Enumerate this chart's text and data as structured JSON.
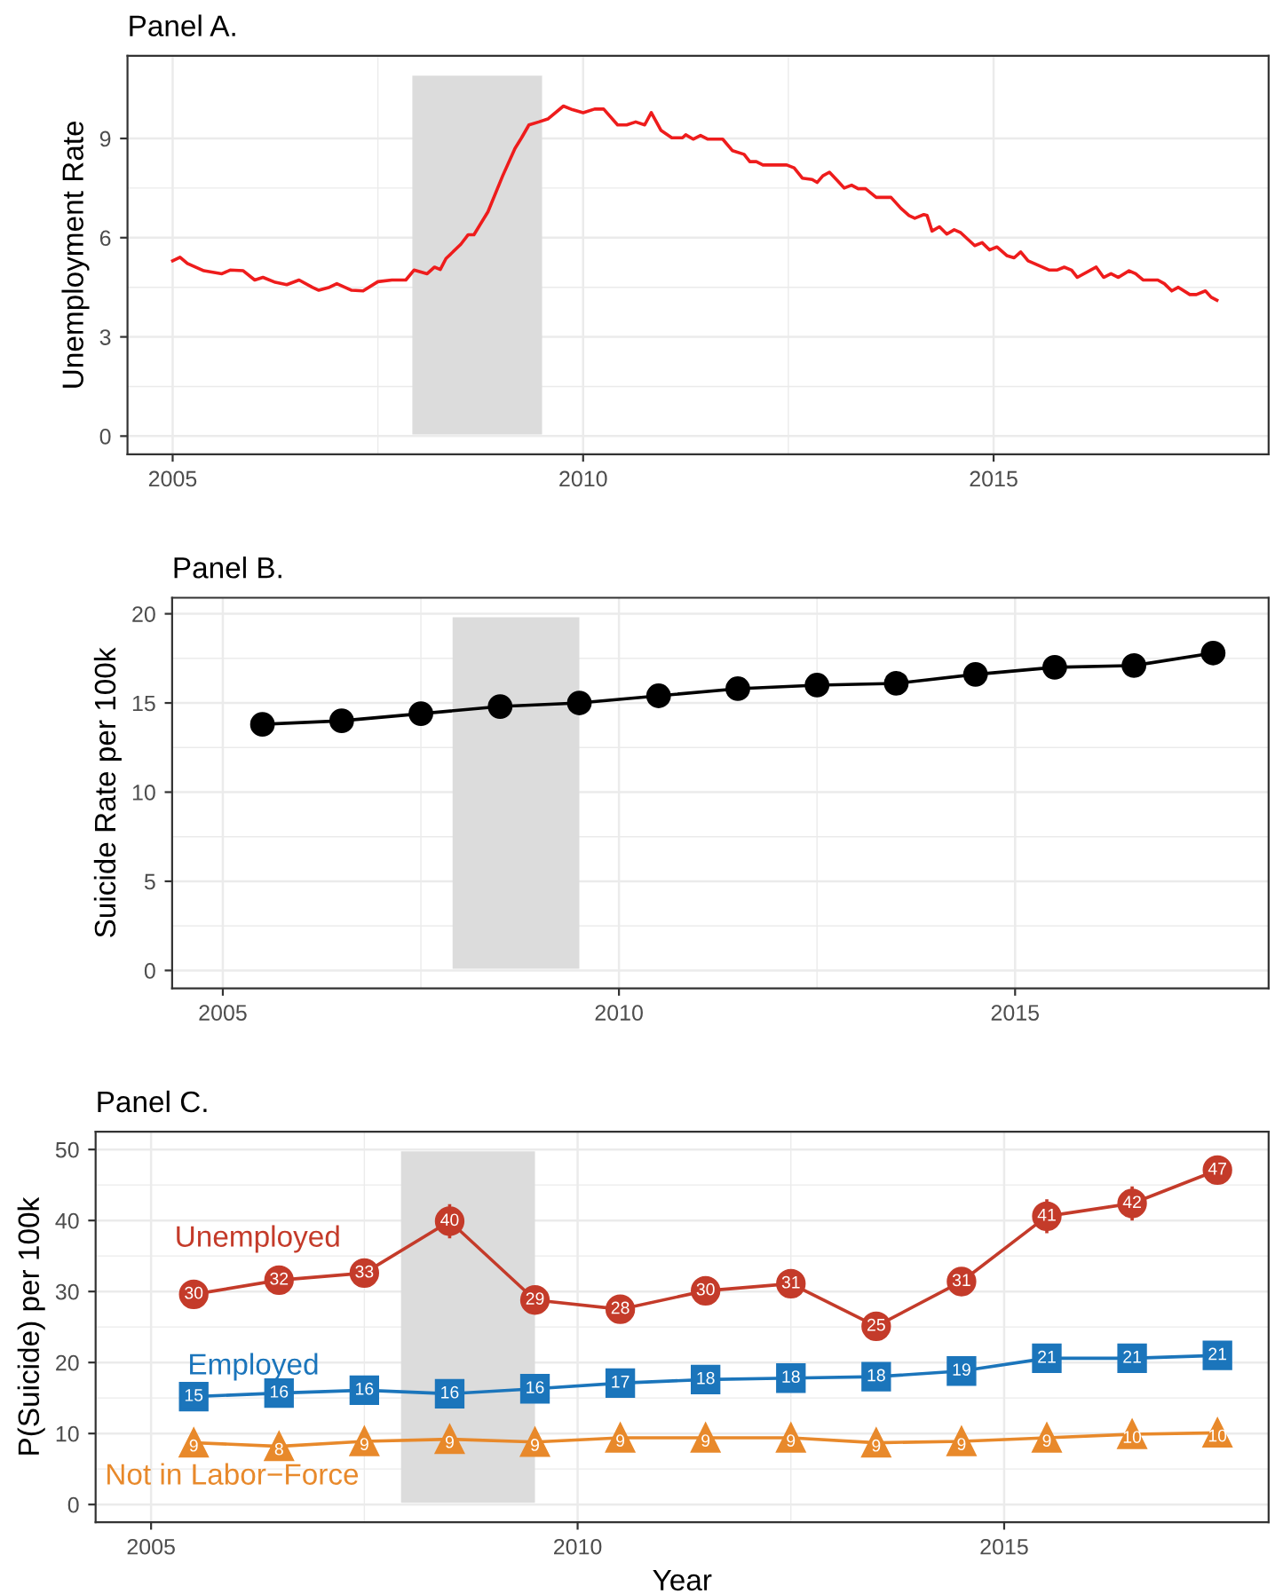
{
  "chart_data": [
    {
      "type": "line",
      "title": "Panel A.",
      "ylabel": "Unemployment Rate",
      "xlim": [
        2004.45,
        2018.35
      ],
      "ylim": [
        -0.55,
        11.5
      ],
      "xticks": [
        2005,
        2010,
        2015
      ],
      "yticks": [
        0,
        3,
        6,
        9
      ],
      "grid": true,
      "legend": false,
      "marker": "none",
      "line_style": "solid",
      "bands": [
        {
          "axis": "x",
          "from": 2007.92,
          "to": 2009.5,
          "color": "#dcdcdc"
        }
      ],
      "series": [
        {
          "color": "#ee1c1c",
          "x": [
            2005.0,
            2005.09,
            2005.18,
            2005.38,
            2005.6,
            2005.7,
            2005.86,
            2006.0,
            2006.1,
            2006.25,
            2006.39,
            2006.54,
            2006.7,
            2006.78,
            2006.91,
            2007.0,
            2007.18,
            2007.32,
            2007.5,
            2007.67,
            2007.84,
            2007.94,
            2008.1,
            2008.19,
            2008.26,
            2008.33,
            2008.51,
            2008.6,
            2008.67,
            2008.84,
            2009.02,
            2009.17,
            2009.25,
            2009.34,
            2009.46,
            2009.57,
            2009.76,
            2009.87,
            2010.0,
            2010.14,
            2010.25,
            2010.42,
            2010.53,
            2010.64,
            2010.75,
            2010.83,
            2010.95,
            2011.08,
            2011.21,
            2011.25,
            2011.34,
            2011.43,
            2011.52,
            2011.7,
            2011.82,
            2011.96,
            2012.03,
            2012.11,
            2012.19,
            2012.48,
            2012.57,
            2012.67,
            2012.79,
            2012.85,
            2012.92,
            2013.0,
            2013.1,
            2013.18,
            2013.27,
            2013.35,
            2013.44,
            2013.57,
            2013.75,
            2013.87,
            2013.97,
            2014.04,
            2014.15,
            2014.19,
            2014.25,
            2014.34,
            2014.43,
            2014.52,
            2014.6,
            2014.77,
            2014.86,
            2014.95,
            2015.04,
            2015.16,
            2015.25,
            2015.33,
            2015.42,
            2015.68,
            2015.77,
            2015.86,
            2015.95,
            2016.02,
            2016.25,
            2016.34,
            2016.43,
            2016.52,
            2016.65,
            2016.73,
            2016.82,
            2017.0,
            2017.08,
            2017.17,
            2017.25,
            2017.39,
            2017.47,
            2017.58,
            2017.65,
            2017.72
          ],
          "values": [
            5.3,
            5.41,
            5.22,
            5.0,
            4.91,
            5.02,
            5.0,
            4.72,
            4.8,
            4.65,
            4.58,
            4.72,
            4.5,
            4.41,
            4.5,
            4.61,
            4.41,
            4.39,
            4.67,
            4.72,
            4.72,
            5.02,
            4.91,
            5.11,
            5.04,
            5.37,
            5.8,
            6.09,
            6.09,
            6.78,
            7.87,
            8.7,
            9.02,
            9.41,
            9.5,
            9.59,
            9.98,
            9.87,
            9.78,
            9.89,
            9.89,
            9.41,
            9.41,
            9.5,
            9.41,
            9.78,
            9.24,
            9.02,
            9.02,
            9.11,
            8.98,
            9.09,
            8.98,
            8.98,
            8.63,
            8.52,
            8.3,
            8.3,
            8.2,
            8.2,
            8.11,
            7.8,
            7.76,
            7.67,
            7.87,
            7.98,
            7.72,
            7.5,
            7.59,
            7.48,
            7.48,
            7.22,
            7.22,
            6.89,
            6.67,
            6.59,
            6.7,
            6.67,
            6.2,
            6.33,
            6.11,
            6.24,
            6.15,
            5.76,
            5.85,
            5.63,
            5.72,
            5.46,
            5.39,
            5.57,
            5.3,
            5.02,
            5.02,
            5.11,
            5.02,
            4.8,
            5.11,
            4.8,
            4.91,
            4.8,
            5.0,
            4.91,
            4.72,
            4.72,
            4.61,
            4.39,
            4.5,
            4.28,
            4.28,
            4.39,
            4.2,
            4.11
          ]
        }
      ]
    },
    {
      "type": "line",
      "title": "Panel B.",
      "ylabel": "Suicide Rate per 100k",
      "xlim": [
        2004.36,
        2018.2
      ],
      "ylim": [
        -1,
        20.9
      ],
      "xticks": [
        2005,
        2010,
        2015
      ],
      "yticks": [
        0,
        5,
        10,
        15,
        20
      ],
      "grid": true,
      "legend": false,
      "marker": "circle",
      "line_style": "solid",
      "bands": [
        {
          "axis": "x",
          "from": 2007.9,
          "to": 2009.5,
          "color": "#dcdcdc"
        }
      ],
      "x": [
        2005.5,
        2006.5,
        2007.5,
        2008.5,
        2009.5,
        2010.5,
        2011.5,
        2012.5,
        2013.5,
        2014.5,
        2015.5,
        2016.5,
        2017.5
      ],
      "series": [
        {
          "color": "#000000",
          "values": [
            13.8,
            14.0,
            14.4,
            14.8,
            15.0,
            15.4,
            15.8,
            16.0,
            16.1,
            16.6,
            17.0,
            17.1,
            17.8
          ]
        }
      ]
    },
    {
      "type": "line",
      "title": "Panel C.",
      "ylabel": "P(Suicide) per 100k",
      "xlabel": "Year",
      "xlim": [
        2004.35,
        2018.1
      ],
      "ylim": [
        -2.5,
        52.5
      ],
      "xticks": [
        2005,
        2010,
        2015
      ],
      "yticks": [
        0,
        10,
        20,
        30,
        40,
        50
      ],
      "grid": true,
      "legend": false,
      "line_style": "solid",
      "bands": [
        {
          "axis": "x",
          "from": 2007.93,
          "to": 2009.5,
          "color": "#dcdcdc"
        }
      ],
      "x": [
        2005.5,
        2006.5,
        2007.5,
        2008.5,
        2009.5,
        2010.5,
        2011.5,
        2012.5,
        2013.5,
        2014.5,
        2015.5,
        2016.5,
        2017.5
      ],
      "series": [
        {
          "name": "Unemployed",
          "color": "#c43b2a",
          "marker": "circle",
          "values": [
            29.6,
            31.6,
            32.6,
            39.9,
            28.8,
            27.5,
            30.1,
            31.1,
            25.1,
            31.4,
            40.6,
            42.4,
            47.1
          ],
          "errors": [
            2,
            2,
            2,
            2.4,
            1.5,
            1.5,
            1.5,
            1.5,
            1.5,
            2,
            2.4,
            2.4,
            1.5
          ],
          "value_labels": [
            "30",
            "32",
            "33",
            "40",
            "29",
            "28",
            "30",
            "31",
            "25",
            "31",
            "41",
            "42",
            "47"
          ]
        },
        {
          "name": "Employed",
          "color": "#1b75bb",
          "marker": "square",
          "values": [
            15.2,
            15.7,
            16.1,
            15.6,
            16.3,
            17.1,
            17.6,
            17.8,
            18.0,
            18.8,
            20.6,
            20.6,
            21.0
          ],
          "value_labels": [
            "15",
            "16",
            "16",
            "16",
            "16",
            "17",
            "18",
            "18",
            "18",
            "19",
            "21",
            "21",
            "21"
          ]
        },
        {
          "name": "Not in Labor−Force",
          "color": "#e8892b",
          "marker": "triangle",
          "values": [
            8.7,
            8.2,
            8.9,
            9.2,
            8.8,
            9.4,
            9.4,
            9.4,
            8.7,
            8.9,
            9.4,
            9.9,
            10.1
          ],
          "value_labels": [
            "9",
            "8",
            "9",
            "9",
            "9",
            "9",
            "9",
            "9",
            "9",
            "9",
            "9",
            "10",
            "10"
          ]
        }
      ]
    }
  ]
}
